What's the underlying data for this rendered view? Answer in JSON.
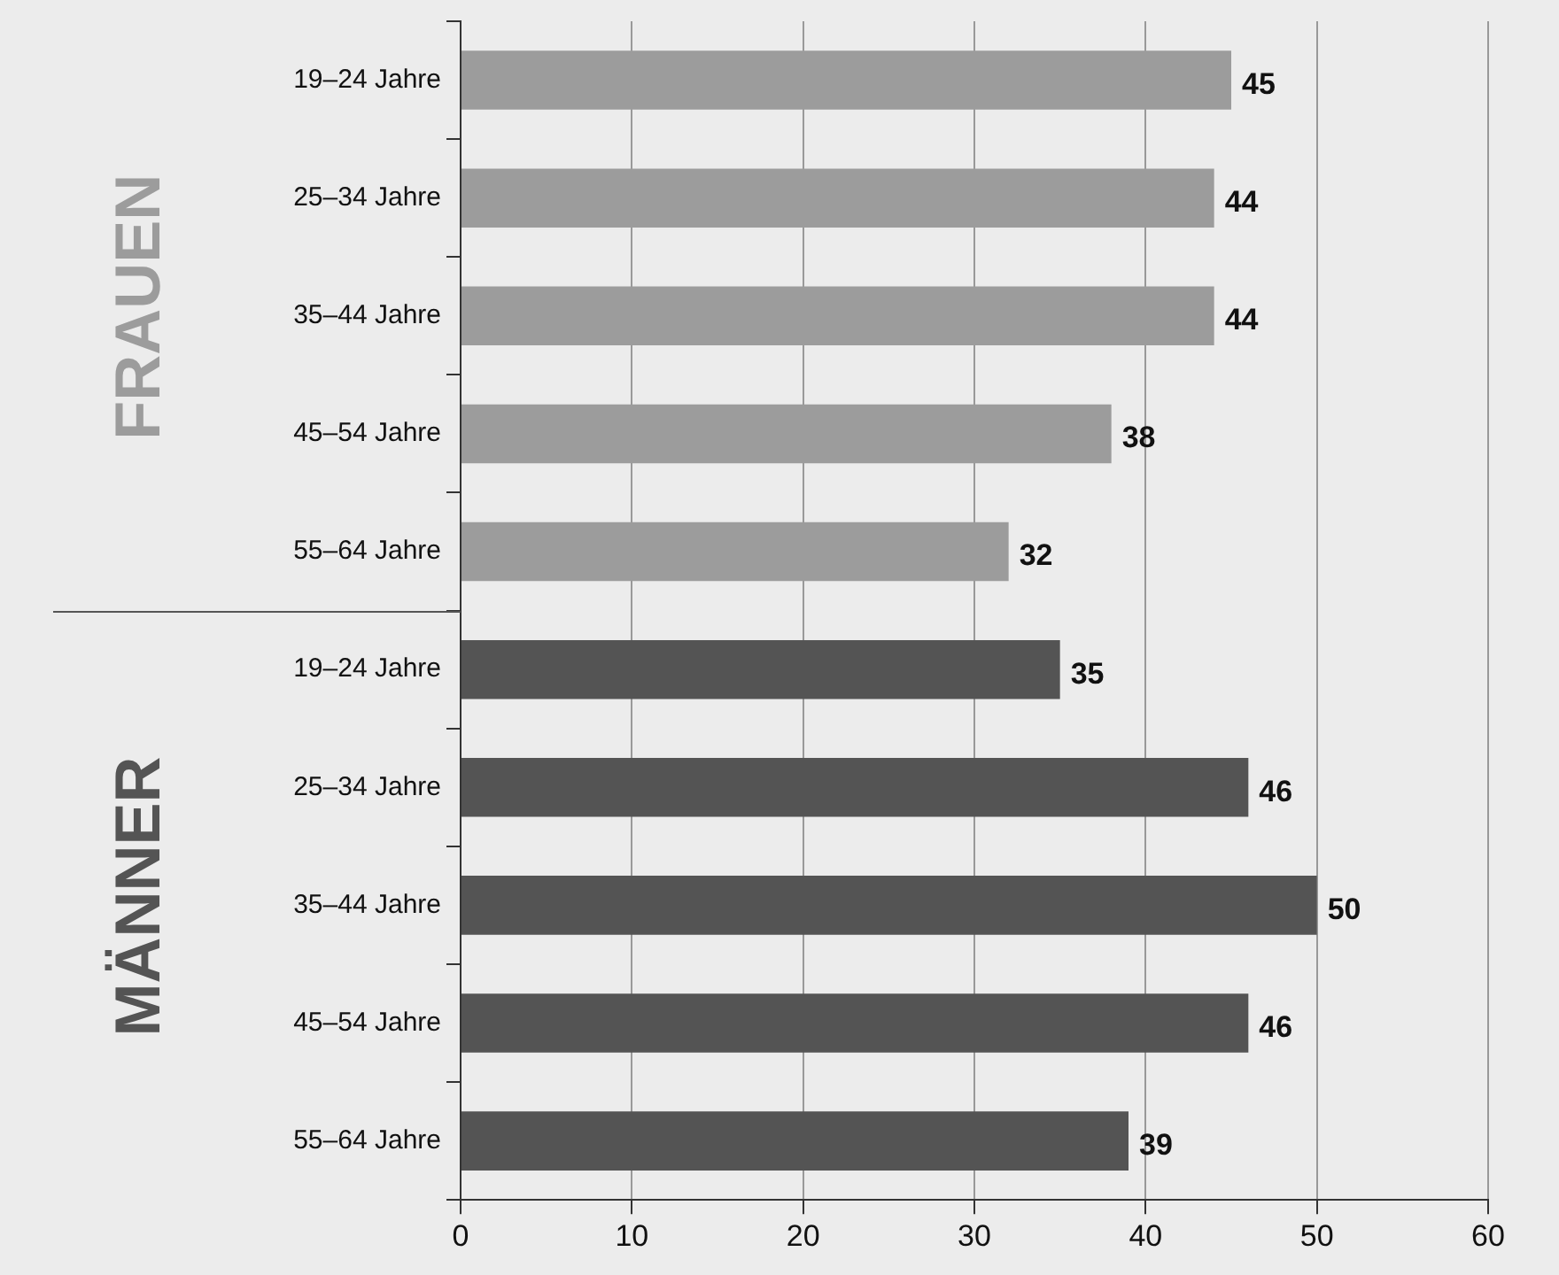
{
  "chart_data": {
    "type": "bar",
    "orientation": "horizontal",
    "categories": [
      "19–24 Jahre",
      "25–34 Jahre",
      "35–44 Jahre",
      "45–54 Jahre",
      "55–64 Jahre",
      "19–24 Jahre",
      "25–34 Jahre",
      "35–44 Jahre",
      "45–54 Jahre",
      "55–64 Jahre"
    ],
    "series": [
      {
        "name": "FRAUEN",
        "color": "#9c9c9c",
        "values": [
          45,
          44,
          44,
          38,
          32,
          null,
          null,
          null,
          null,
          null
        ]
      },
      {
        "name": "MÄNNER",
        "color": "#545454",
        "values": [
          null,
          null,
          null,
          null,
          null,
          35,
          46,
          50,
          46,
          39
        ]
      }
    ],
    "xlim": [
      0,
      60
    ],
    "xticks": [
      0,
      10,
      20,
      30,
      40,
      50,
      60
    ],
    "grid": "x",
    "legend": false,
    "data_labels": true
  }
}
